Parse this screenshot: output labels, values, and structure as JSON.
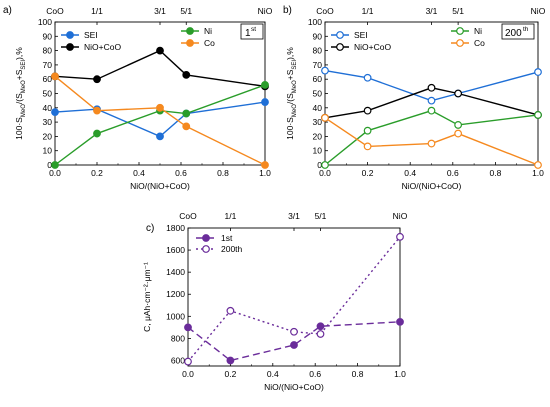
{
  "chart_data": [
    {
      "panel": "a)",
      "type": "line",
      "corner_label": "1",
      "corner_label_sup": "st",
      "xlabel": "NiO/(NiO+CoO)",
      "ylabel": "100·S_MeO/(S_MeO+S_SEI),%",
      "xlim": [
        0,
        1.0
      ],
      "ylim": [
        0,
        100
      ],
      "x_ticks": [
        0.0,
        0.2,
        0.4,
        0.6,
        0.8,
        1.0
      ],
      "x_tick_labels": [
        "0.0",
        "0.2",
        "0.4",
        "0.6",
        "0.8",
        "1.0"
      ],
      "y_ticks": [
        0,
        10,
        20,
        30,
        40,
        50,
        60,
        70,
        80,
        90,
        100
      ],
      "y_tick_labels": [
        "0",
        "10",
        "20",
        "30",
        "40",
        "50",
        "60",
        "70",
        "80",
        "90",
        "100"
      ],
      "top_ticks": [
        0,
        0.2,
        0.5,
        0.625,
        1.0
      ],
      "top_tick_labels": [
        "CoO",
        "1/1",
        "3/1",
        "5/1",
        "NiO"
      ],
      "grid": false,
      "legend": "top",
      "series": [
        {
          "name": "SEI",
          "color": "#1f6fd6",
          "marker": "filled",
          "dash": "",
          "x": [
            0,
            0.2,
            0.5,
            0.625,
            1.0
          ],
          "y": [
            37,
            39,
            20,
            36,
            44
          ]
        },
        {
          "name": "NiO+CoO",
          "color": "#000000",
          "marker": "filled",
          "dash": "",
          "x": [
            0,
            0.2,
            0.5,
            0.625,
            1.0
          ],
          "y": [
            62,
            60,
            80,
            63,
            55
          ]
        },
        {
          "name": "Ni",
          "color": "#2a9d2a",
          "marker": "filled",
          "dash": "",
          "x": [
            0,
            0.2,
            0.5,
            0.625,
            1.0
          ],
          "y": [
            0,
            22,
            38,
            36,
            56
          ]
        },
        {
          "name": "Co",
          "color": "#f5891f",
          "marker": "filled",
          "dash": "",
          "x": [
            0,
            0.2,
            0.5,
            0.625,
            1.0
          ],
          "y": [
            62,
            38,
            40,
            27,
            0
          ]
        }
      ]
    },
    {
      "panel": "b)",
      "type": "line",
      "corner_label": "200",
      "corner_label_sup": "th",
      "xlabel": "NiO/(NiO+CoO)",
      "ylabel": "100·S_MeO/(S_MeO+S_SEI),%",
      "xlim": [
        0,
        1.0
      ],
      "ylim": [
        0,
        100
      ],
      "x_ticks": [
        0.0,
        0.2,
        0.4,
        0.6,
        0.8,
        1.0
      ],
      "x_tick_labels": [
        "0.0",
        "0.2",
        "0.4",
        "0.6",
        "0.8",
        "1.0"
      ],
      "y_ticks": [
        0,
        10,
        20,
        30,
        40,
        50,
        60,
        70,
        80,
        90,
        100
      ],
      "y_tick_labels": [
        "0",
        "10",
        "20",
        "30",
        "40",
        "50",
        "60",
        "70",
        "80",
        "90",
        "100"
      ],
      "top_ticks": [
        0,
        0.2,
        0.5,
        0.625,
        1.0
      ],
      "top_tick_labels": [
        "CoO",
        "1/1",
        "3/1",
        "5/1",
        "NiO"
      ],
      "grid": false,
      "legend": "top",
      "series": [
        {
          "name": "SEI",
          "color": "#1f6fd6",
          "marker": "open",
          "dash": "",
          "x": [
            0,
            0.2,
            0.5,
            0.625,
            1.0
          ],
          "y": [
            66,
            61,
            45,
            50,
            65
          ]
        },
        {
          "name": "NiO+CoO",
          "color": "#000000",
          "marker": "open",
          "dash": "",
          "x": [
            0,
            0.2,
            0.5,
            0.625,
            1.0
          ],
          "y": [
            33,
            38,
            54,
            50,
            35
          ]
        },
        {
          "name": "Ni",
          "color": "#2a9d2a",
          "marker": "open",
          "dash": "",
          "x": [
            0,
            0.2,
            0.5,
            0.625,
            1.0
          ],
          "y": [
            0,
            24,
            38,
            28,
            35
          ]
        },
        {
          "name": "Co",
          "color": "#f5891f",
          "marker": "open",
          "dash": "",
          "x": [
            0,
            0.2,
            0.5,
            0.625,
            1.0
          ],
          "y": [
            33,
            13,
            15,
            22,
            0
          ]
        }
      ]
    },
    {
      "panel": "c)",
      "type": "line",
      "xlabel": "NiO/(NiO+CoO)",
      "ylabel": "C, μAh·cm⁻²·μm⁻¹",
      "xlim": [
        0,
        1.0
      ],
      "ylim": [
        550,
        1800
      ],
      "x_ticks": [
        0.0,
        0.2,
        0.4,
        0.6,
        0.8,
        1.0
      ],
      "x_tick_labels": [
        "0.0",
        "0.2",
        "0.4",
        "0.6",
        "0.8",
        "1.0"
      ],
      "y_ticks": [
        600,
        800,
        1000,
        1200,
        1400,
        1600,
        1800
      ],
      "y_tick_labels": [
        "600",
        "800",
        "1000",
        "1200",
        "1400",
        "1600",
        "1800"
      ],
      "top_ticks": [
        0,
        0.2,
        0.5,
        0.625,
        1.0
      ],
      "top_tick_labels": [
        "CoO",
        "1/1",
        "3/1",
        "5/1",
        "NiO"
      ],
      "grid": false,
      "legend": "top-left",
      "series": [
        {
          "name": "1st",
          "color": "#6a2c9a",
          "marker": "filled",
          "dash": "7,4",
          "x": [
            0,
            0.2,
            0.5,
            0.625,
            1.0
          ],
          "y": [
            900,
            600,
            740,
            910,
            950
          ]
        },
        {
          "name": "200th",
          "color": "#6a2c9a",
          "marker": "open",
          "dash": "2,3",
          "x": [
            0,
            0.2,
            0.5,
            0.625,
            1.0
          ],
          "y": [
            590,
            1050,
            860,
            840,
            1720
          ]
        }
      ]
    }
  ]
}
